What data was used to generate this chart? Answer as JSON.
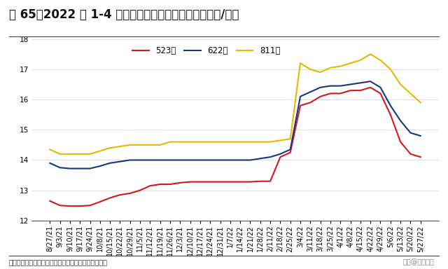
{
  "title": "图 65、2022 年 1-4 月三元前驱体价格上涨显著（万元/吨）",
  "source": "资料来源：鑫榉锂电，兴业证券经济与金融研究院整理",
  "watermark": "头条@未来智库",
  "ylim": [
    12,
    18
  ],
  "yticks": [
    12,
    13,
    14,
    15,
    16,
    17,
    18
  ],
  "legend_labels": [
    "523型",
    "622型",
    "811型"
  ],
  "line_colors": [
    "#d4171e",
    "#1a3580",
    "#e8b800"
  ],
  "x_labels": [
    "8/27/21",
    "9/3/21",
    "9/10/21",
    "9/17/21",
    "9/24/21",
    "10/8/21",
    "10/15/21",
    "10/22/21",
    "10/29/21",
    "11/5/21",
    "11/12/21",
    "11/19/21",
    "11/26/21",
    "12/3/21",
    "12/10/21",
    "12/17/21",
    "12/24/21",
    "12/31/21",
    "1/7/22",
    "1/14/22",
    "1/21/22",
    "1/28/22",
    "2/11/22",
    "2/18/22",
    "2/25/22",
    "3/4/22",
    "3/11/22",
    "3/18/22",
    "3/25/22",
    "4/1/22",
    "4/8/22",
    "4/15/22",
    "4/22/22",
    "4/29/22",
    "5/6/22",
    "5/13/22",
    "5/20/22",
    "5/27/22"
  ],
  "series_523": [
    12.65,
    12.5,
    12.48,
    12.48,
    12.5,
    12.62,
    12.75,
    12.85,
    12.9,
    13.0,
    13.15,
    13.2,
    13.2,
    13.25,
    13.28,
    13.28,
    13.28,
    13.28,
    13.28,
    13.28,
    13.28,
    13.3,
    13.3,
    14.1,
    14.25,
    15.8,
    15.9,
    16.1,
    16.2,
    16.2,
    16.3,
    16.3,
    16.4,
    16.2,
    15.5,
    14.6,
    14.2,
    14.1
  ],
  "series_622": [
    13.9,
    13.75,
    13.72,
    13.72,
    13.72,
    13.8,
    13.9,
    13.95,
    14.0,
    14.0,
    14.0,
    14.0,
    14.0,
    14.0,
    14.0,
    14.0,
    14.0,
    14.0,
    14.0,
    14.0,
    14.0,
    14.05,
    14.1,
    14.2,
    14.35,
    16.1,
    16.25,
    16.4,
    16.45,
    16.45,
    16.5,
    16.55,
    16.6,
    16.4,
    15.8,
    15.3,
    14.9,
    14.8
  ],
  "series_811": [
    14.35,
    14.2,
    14.2,
    14.2,
    14.2,
    14.3,
    14.4,
    14.45,
    14.5,
    14.5,
    14.5,
    14.5,
    14.6,
    14.6,
    14.6,
    14.6,
    14.6,
    14.6,
    14.6,
    14.6,
    14.6,
    14.6,
    14.6,
    14.65,
    14.7,
    17.2,
    17.0,
    16.9,
    17.05,
    17.1,
    17.2,
    17.3,
    17.5,
    17.3,
    17.0,
    16.5,
    16.2,
    15.9
  ],
  "background_color": "#ffffff",
  "title_fontsize": 12,
  "axis_fontsize": 7,
  "legend_fontsize": 8.5
}
